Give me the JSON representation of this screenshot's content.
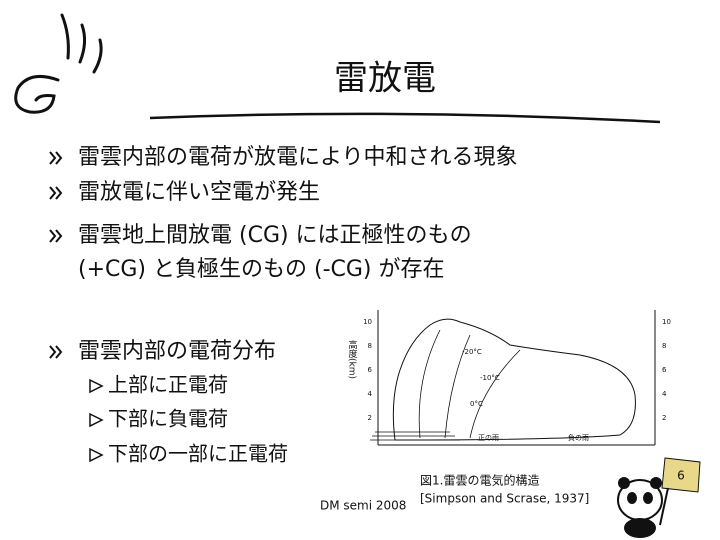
{
  "title": "雷放電",
  "bullets": [
    {
      "lines": [
        "雷雲内部の電荷が放電により中和される現象"
      ]
    },
    {
      "lines": [
        "雷放電に伴い空電が発生"
      ]
    },
    {
      "lines": [
        "雷雲地上間放電 (CG) には正極性のもの",
        "(+CG) と負極生のもの (-CG) が存在"
      ]
    },
    {
      "lines": [
        "雷雲内部の電荷分布"
      ]
    }
  ],
  "sub_bullets": [
    "上部に正電荷",
    "下部に負電荷",
    "下部の一部に正電荷"
  ],
  "figure": {
    "y_ticks_left": [
      10,
      8,
      6,
      4,
      2
    ],
    "y_ticks_right": [
      10,
      8,
      6,
      4,
      2
    ],
    "y_label": "高度(km)",
    "labels": [
      "-20°C",
      "-10°C",
      "0°C",
      "正の雨",
      "負の雨"
    ],
    "caption": "図1.雷雲の電気的構造",
    "source": "[Simpson and Scrase, 1937]"
  },
  "footer": "DM semi 2008",
  "page_number": "6"
}
